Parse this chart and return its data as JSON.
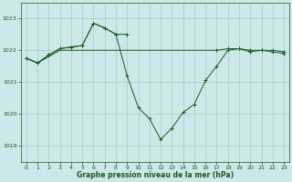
{
  "title": "Graphe pression niveau de la mer (hPa)",
  "bg_color": "#cce8e8",
  "grid_color": "#aacccc",
  "line_color": "#1a5c1a",
  "xlim": [
    -0.5,
    23.5
  ],
  "ylim": [
    1018.5,
    1023.5
  ],
  "yticks": [
    1019,
    1020,
    1021,
    1022,
    1023
  ],
  "xticks": [
    0,
    1,
    2,
    3,
    4,
    5,
    6,
    7,
    8,
    9,
    10,
    11,
    12,
    13,
    14,
    15,
    16,
    17,
    18,
    19,
    20,
    21,
    22,
    23
  ],
  "line1_x": [
    0,
    1,
    2,
    3,
    4,
    5,
    6,
    7,
    8,
    9,
    10,
    11,
    12,
    13,
    14,
    15,
    16,
    17,
    18,
    19,
    20,
    21,
    22,
    23
  ],
  "line1_y": [
    1021.75,
    1021.6,
    1021.85,
    1022.05,
    1022.1,
    1022.15,
    1022.85,
    1022.7,
    1022.5,
    1021.2,
    1020.2,
    1019.85,
    1019.2,
    1019.55,
    1020.05,
    1020.3,
    1021.05,
    1021.5,
    1022.0,
    1022.05,
    1021.95,
    1022.0,
    1021.95,
    1021.9
  ],
  "line2_x": [
    0,
    1,
    2,
    3,
    4,
    5,
    6,
    7,
    8,
    9,
    10,
    11,
    12,
    13,
    14,
    15,
    16,
    17,
    18,
    19,
    20,
    21,
    22,
    23
  ],
  "line2_y": [
    1021.75,
    1021.6,
    1021.8,
    1022.0,
    1022.0,
    1022.0,
    1022.0,
    1022.0,
    1022.0,
    1022.0,
    1022.0,
    1022.0,
    1022.0,
    1022.0,
    1022.0,
    1022.0,
    1022.0,
    1022.0,
    1022.05,
    1022.05,
    1022.0,
    1022.0,
    1022.0,
    1021.95
  ],
  "line3_x": [
    0,
    1,
    2,
    3,
    4,
    5,
    6,
    7,
    8,
    9
  ],
  "line3_y": [
    1021.75,
    1021.6,
    1021.85,
    1022.05,
    1022.1,
    1022.15,
    1022.85,
    1022.7,
    1022.5,
    1022.5
  ],
  "line3_markers": true,
  "line1_markers_x": [
    0,
    1,
    2,
    3,
    4,
    5,
    6,
    7,
    8,
    9,
    10,
    11,
    12,
    13,
    14,
    15,
    16,
    17,
    18,
    19,
    20,
    21,
    22,
    23
  ],
  "line2_markers_x": [
    17,
    18,
    19,
    20,
    21,
    22,
    23
  ],
  "line2_markers_y": [
    1022.0,
    1022.05,
    1022.05,
    1022.0,
    1022.0,
    1022.0,
    1021.95
  ]
}
